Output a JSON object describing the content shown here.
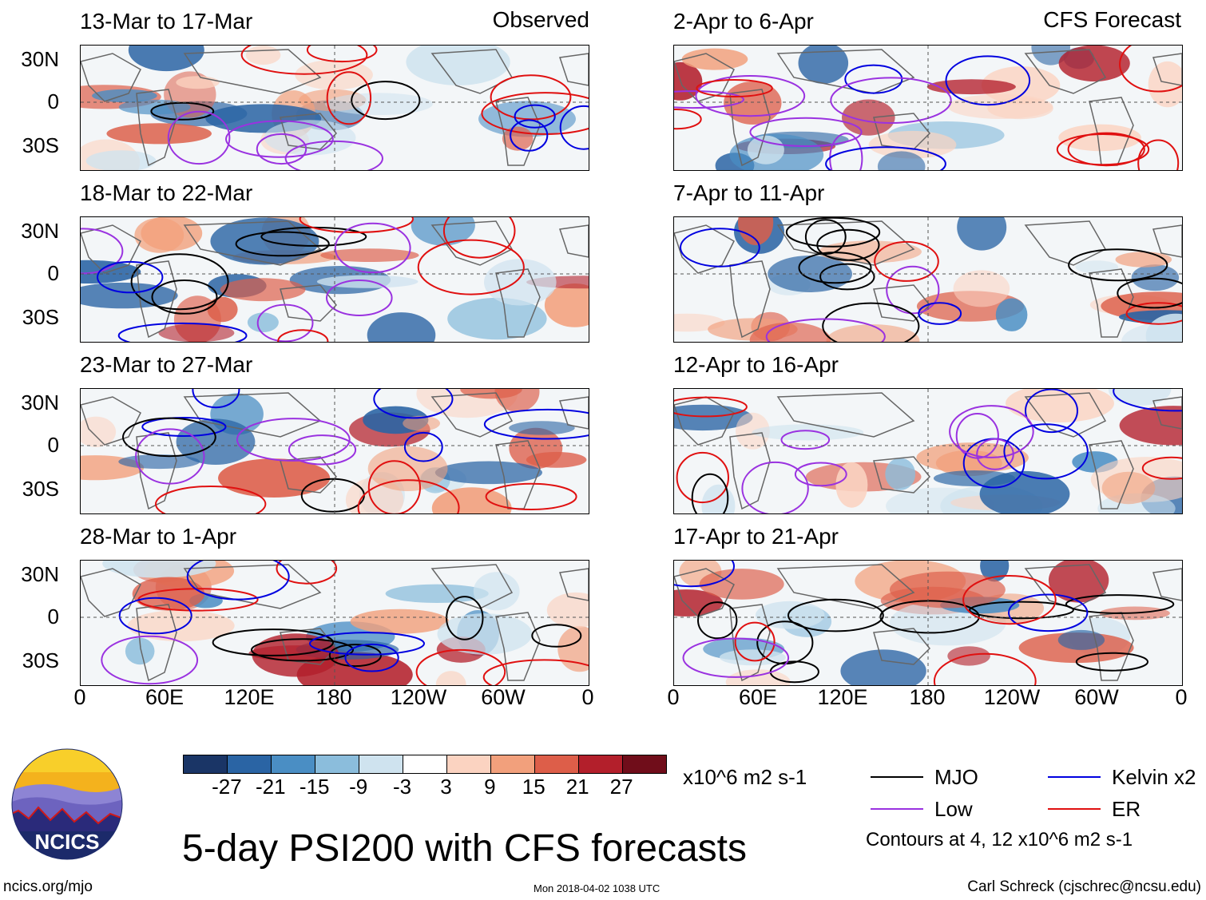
{
  "left_tag": "Observed",
  "right_tag": "CFS Forecast",
  "panels": [
    {
      "title": "13-Mar to 17-Mar",
      "column": "observed"
    },
    {
      "title": "18-Mar to 22-Mar",
      "column": "observed"
    },
    {
      "title": "23-Mar to 27-Mar",
      "column": "observed"
    },
    {
      "title": "28-Mar to 1-Apr",
      "column": "observed"
    },
    {
      "title": "2-Apr to 6-Apr",
      "column": "forecast"
    },
    {
      "title": "7-Apr to 11-Apr",
      "column": "forecast"
    },
    {
      "title": "12-Apr to 16-Apr",
      "column": "forecast"
    },
    {
      "title": "17-Apr to 21-Apr",
      "column": "forecast"
    }
  ],
  "lat_labels": [
    "30N",
    "0",
    "30S"
  ],
  "lon_labels": [
    "0",
    "60E",
    "120E",
    "180",
    "120W",
    "60W",
    "0"
  ],
  "colorbar": {
    "colors": [
      "#1a3566",
      "#2a64a4",
      "#4a8ec4",
      "#8bbddc",
      "#cfe3ef",
      "#ffffff",
      "#fbd3c1",
      "#f2a07c",
      "#dd5e49",
      "#b31f2b",
      "#700d1a"
    ],
    "labels": [
      "-27",
      "-21",
      "-15",
      "-9",
      "-3",
      "3",
      "9",
      "15",
      "21",
      "27"
    ]
  },
  "units": "x10^6 m2 s-1",
  "legend": [
    {
      "label": "MJO",
      "color": "#000000"
    },
    {
      "label": "Kelvin x2",
      "color": "#0000e0"
    },
    {
      "label": "Low",
      "color": "#9a32e0"
    },
    {
      "label": "ER",
      "color": "#e01010"
    }
  ],
  "contours_note": "Contours at 4, 12 x10^6 m2 s-1",
  "main_title": "5-day PSI200 with CFS forecasts",
  "logo_text": "NCICS",
  "footer": {
    "left": "ncics.org/mjo",
    "center": "Mon 2018-04-02 1038 UTC",
    "right": "Carl Schreck (cjschrec@ncsu.edu)"
  }
}
